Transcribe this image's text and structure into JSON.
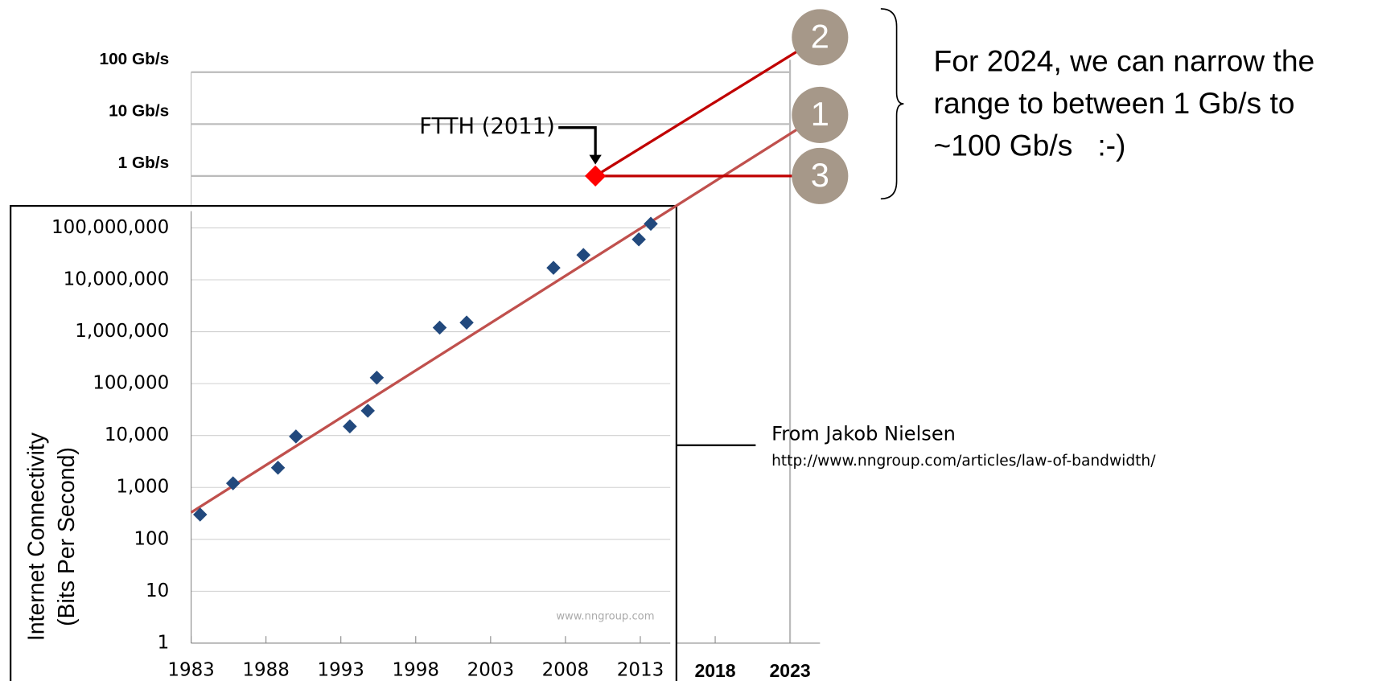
{
  "chart_data": {
    "type": "scatter",
    "log_y": true,
    "grid": true,
    "y_label": [
      "Internet Connectivity",
      "(Bits Per Second)"
    ],
    "xlim": [
      1983,
      2025
    ],
    "ylim": [
      1,
      100000000000
    ],
    "xticks": [
      1983,
      1988,
      1993,
      1998,
      2003,
      2008,
      2013
    ],
    "extended_xticks": [
      2018,
      2023
    ],
    "yticks": [
      1,
      10,
      100,
      {
        "value": 1000,
        "label": "1,000"
      },
      {
        "value": 10000,
        "label": "10,000"
      },
      {
        "value": 100000,
        "label": "100,000"
      },
      {
        "value": 1000000,
        "label": "1,000,000"
      },
      {
        "value": 10000000,
        "label": "10,000,000"
      },
      {
        "value": 100000000,
        "label": "100,000,000"
      }
    ],
    "extended_yticks": [
      {
        "value": 1000000000,
        "label": "1 Gb/s"
      },
      {
        "value": 10000000000,
        "label": "10 Gb/s"
      },
      {
        "value": 100000000000,
        "label": "100 Gb/s"
      }
    ],
    "points": {
      "color": "#22497d",
      "x": [
        1983.6,
        1985.8,
        1988.8,
        1990,
        1993.6,
        1994.8,
        1995.4,
        1999.6,
        2001.4,
        2007.2,
        2009.2,
        2012.9,
        2013.7
      ],
      "values": [
        300,
        1200,
        2400,
        9600,
        15000,
        30000,
        130000,
        1200000,
        1500000,
        17000000,
        30000000,
        60000000,
        120000000
      ]
    },
    "trend": {
      "color": "#c0504d",
      "label": "1",
      "x": [
        1983,
        2025
      ],
      "values": [
        330,
        15000000000
      ]
    },
    "highlight": {
      "label": "FTTH (2011)",
      "color": "#ff0000",
      "x": 2010,
      "value": 1000000000
    },
    "projections": [
      {
        "label": "2",
        "x": 2025,
        "value": 470000000000
      },
      {
        "label": "3",
        "x": 2025,
        "value": 1000000000
      }
    ],
    "note": [
      "For 2024, we can narrow the",
      "range to between 1 Gb/s to",
      "~100 Gb/s   :-)"
    ],
    "source": "From Jakob Nielsen",
    "source_url": "http://www.nngroup.com/articles/law-of-bandwidth/",
    "watermark": "www.nngroup.com"
  }
}
